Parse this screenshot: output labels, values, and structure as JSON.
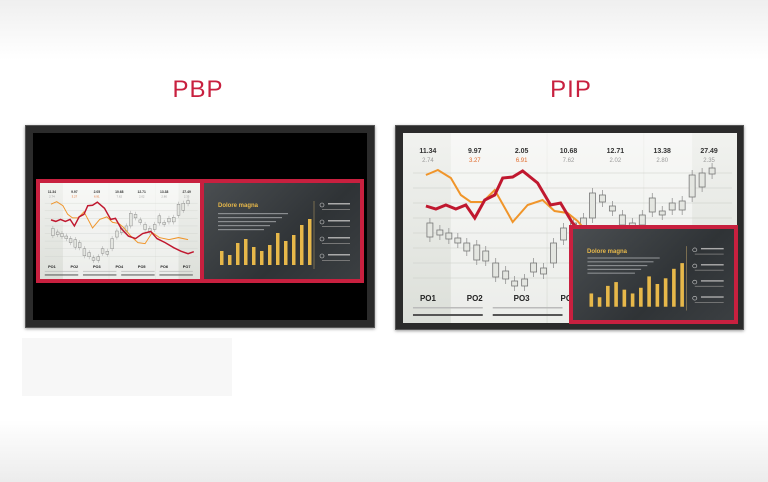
{
  "labels": {
    "pbp": "PBP",
    "pip": "PIP"
  },
  "chart": {
    "values": [
      "11.34",
      "9.97",
      "2.05",
      "10.68",
      "12.71",
      "13.38",
      "27.49"
    ],
    "subvalues": [
      "2.74",
      "3.27",
      "6.91",
      "7.62",
      "2.02",
      "2.80",
      "2.35"
    ],
    "periods": [
      "PO1",
      "PO2",
      "PO3",
      "PO4",
      "PO5",
      "PO6",
      "PO7"
    ]
  },
  "inset": {
    "heading": "Dolore magna"
  },
  "colors": {
    "accent": "#c8203f",
    "red_line": "#c0182f",
    "orange_line": "#f0952a",
    "gold": "#e7b84a"
  }
}
